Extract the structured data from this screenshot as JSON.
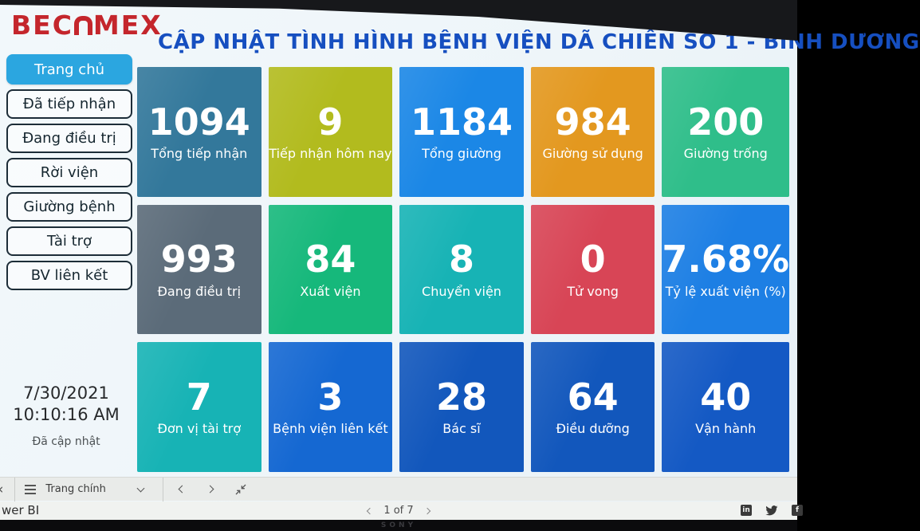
{
  "header": {
    "logo_text_left": "BEC",
    "logo_text_right": "MEX",
    "logo_color": "#c4262c",
    "title": "CẬP NHẬT TÌNH HÌNH BỆNH VIỆN DÃ CHIẾN SỐ 1 - BÌNH DƯƠNG",
    "title_color": "#164fc0"
  },
  "sidebar": {
    "active_item": "Trang chủ",
    "active_color": "#2ba6e0",
    "items": [
      {
        "label": "Đã tiếp nhận"
      },
      {
        "label": "Đang điều trị"
      },
      {
        "label": "Rời viện"
      },
      {
        "label": "Giường bệnh"
      },
      {
        "label": "Tài trợ"
      },
      {
        "label": "BV liên kết"
      }
    ],
    "updated": {
      "date": "7/30/2021",
      "time": "10:10:16 AM",
      "note": "Đã cập nhật"
    }
  },
  "cards": [
    {
      "value": "1094",
      "label": "Tổng tiếp nhận",
      "color": "#33789b"
    },
    {
      "value": "9",
      "label": "Tiếp nhận hôm nay",
      "color": "#b2bb1e"
    },
    {
      "value": "1184",
      "label": "Tổng giường",
      "color": "#1b87e6"
    },
    {
      "value": "984",
      "label": "Giường sử dụng",
      "color": "#e3981f"
    },
    {
      "value": "200",
      "label": "Giường trống",
      "color": "#2fbe8a"
    },
    {
      "value": "993",
      "label": "Đang điều trị",
      "color": "#5b6b79"
    },
    {
      "value": "84",
      "label": "Xuất viện",
      "color": "#16b87b"
    },
    {
      "value": "8",
      "label": "Chuyển viện",
      "color": "#17b3b5"
    },
    {
      "value": "0",
      "label": "Tử vong",
      "color": "#d84556"
    },
    {
      "value": "7.68%",
      "label": "Tỷ lệ xuất viện (%)",
      "color": "#1d7fe4"
    },
    {
      "value": "7",
      "label": "Đơn vị tài trợ",
      "color": "#17b3b5"
    },
    {
      "value": "3",
      "label": "Bệnh viện liên kết",
      "color": "#1568d2"
    },
    {
      "value": "28",
      "label": "Bác sĩ",
      "color": "#1257bc"
    },
    {
      "value": "64",
      "label": "Điều dưỡng",
      "color": "#1257bc"
    },
    {
      "value": "40",
      "label": "Vận hành",
      "color": "#1459c4"
    }
  ],
  "powerbi_bar": {
    "tab_label": "Trang chính"
  },
  "footer": {
    "brand_visible_text": "wer BI",
    "pager": "1 of 7",
    "social_icons": [
      "linkedin",
      "twitter",
      "facebook"
    ]
  },
  "bezel": {
    "brand": "SONY"
  }
}
